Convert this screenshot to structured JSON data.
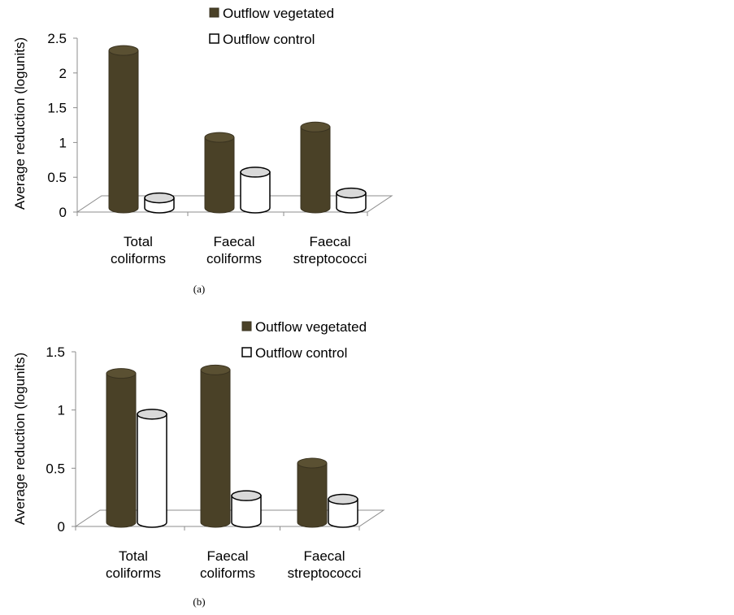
{
  "chart_data": [
    {
      "type": "bar",
      "caption": "(a)",
      "ylabel": "Average reduction (logunits)",
      "ylim": [
        0,
        2.5
      ],
      "yticks": [
        "0",
        "0.5",
        "1",
        "1.5",
        "2",
        "2.5"
      ],
      "categories": [
        [
          "Total",
          "coliforms"
        ],
        [
          "Faecal",
          "coliforms"
        ],
        [
          "Faecal",
          "streptococci"
        ]
      ],
      "series": [
        {
          "name": "Outflow vegetated",
          "values": [
            2.3,
            1.05,
            1.2
          ],
          "color": "#4a4127"
        },
        {
          "name": "Outflow control",
          "values": [
            0.18,
            0.55,
            0.25
          ],
          "color": "#ffffff"
        }
      ],
      "legend_position": "top",
      "grid": false
    },
    {
      "type": "bar",
      "caption": "(b)",
      "ylabel": "Average reduction (logunits)",
      "ylim": [
        0,
        1.5
      ],
      "yticks": [
        "0",
        "0.5",
        "1",
        "1.5"
      ],
      "categories": [
        [
          "Total",
          "coliforms"
        ],
        [
          "Faecal",
          "coliforms"
        ],
        [
          "Faecal",
          "streptococci"
        ]
      ],
      "series": [
        {
          "name": "Outflow vegetated",
          "values": [
            1.3,
            1.33,
            0.53
          ],
          "color": "#4a4127"
        },
        {
          "name": "Outflow control",
          "values": [
            0.95,
            0.25,
            0.22
          ],
          "color": "#ffffff"
        }
      ],
      "legend_position": "top",
      "grid": false
    }
  ]
}
